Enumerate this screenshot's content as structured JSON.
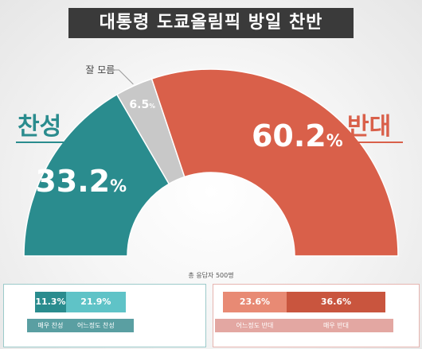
{
  "title": "대통령 도쿄올림픽 방일 찬반",
  "chart_data": {
    "type": "pie",
    "subtype": "semicircle",
    "categories": [
      "찬성",
      "잘 모름",
      "반대"
    ],
    "values": [
      33.2,
      6.5,
      60.2
    ],
    "value_labels": [
      "33.2%",
      "6.5%",
      "60.2%"
    ],
    "colors": [
      "#2a8c8e",
      "#c8c8c8",
      "#d9604a"
    ],
    "labels": {
      "approve": "찬성",
      "unknown": "잘 모름",
      "oppose": "반대"
    },
    "total_note": "총 응답자 500명",
    "breakdown": {
      "approve": [
        {
          "label": "매우 찬성",
          "value": 11.3,
          "text": "11.3%",
          "color": "#2a8c8e"
        },
        {
          "label": "어느정도 찬성",
          "value": 21.9,
          "text": "21.9%",
          "color": "#5fc3c7"
        }
      ],
      "oppose": [
        {
          "label": "어느정도 반대",
          "value": 23.6,
          "text": "23.6%",
          "color": "#e88a74"
        },
        {
          "label": "매우 반대",
          "value": 36.6,
          "text": "36.6%",
          "color": "#c9553e"
        }
      ]
    }
  }
}
